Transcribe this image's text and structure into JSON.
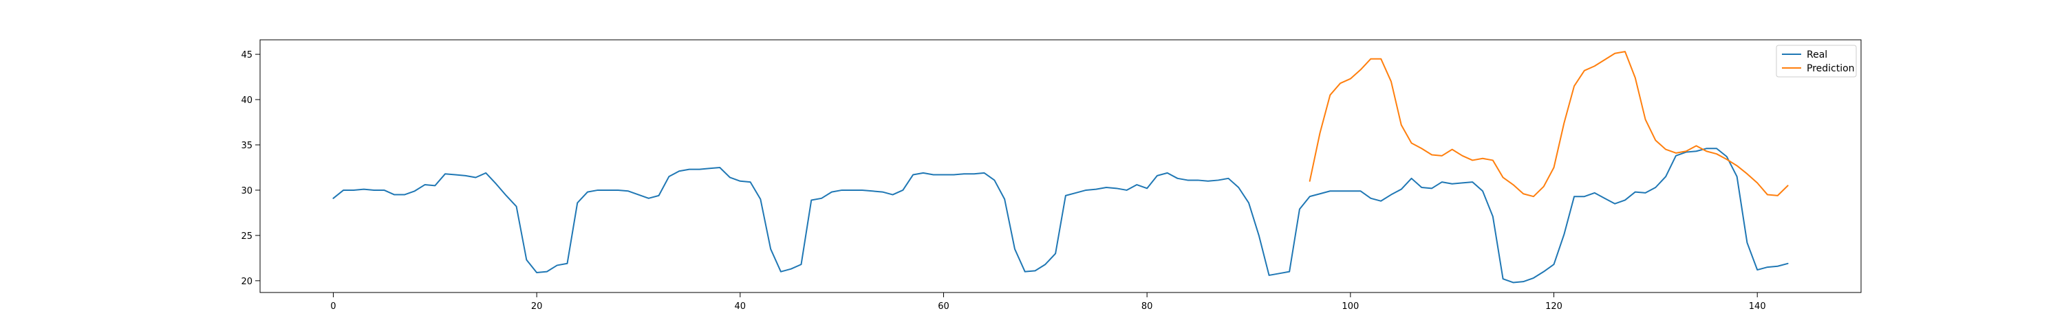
{
  "chart_data": {
    "type": "line",
    "title": "",
    "xlabel": "",
    "ylabel": "",
    "xlim": [
      -7.2,
      150.2
    ],
    "ylim": [
      18.7,
      46.6
    ],
    "x_ticks": [
      0,
      20,
      40,
      60,
      80,
      100,
      120,
      140
    ],
    "y_ticks": [
      20,
      25,
      30,
      35,
      40,
      45
    ],
    "grid": false,
    "legend_position": "top-right",
    "series": [
      {
        "name": "Real",
        "color": "#1f77b4",
        "x_start": 0,
        "values": [
          29.1,
          30.0,
          30.0,
          30.1,
          30.0,
          30.0,
          29.5,
          29.5,
          29.9,
          30.6,
          30.5,
          31.8,
          31.7,
          31.6,
          31.4,
          31.9,
          30.7,
          29.4,
          28.2,
          22.3,
          20.9,
          21.0,
          21.7,
          21.9,
          28.6,
          29.8,
          30.0,
          30.0,
          30.0,
          29.9,
          29.5,
          29.1,
          29.4,
          31.5,
          32.1,
          32.3,
          32.3,
          32.4,
          32.5,
          31.4,
          31.0,
          30.9,
          29.0,
          23.5,
          21.0,
          21.3,
          21.8,
          28.9,
          29.1,
          29.8,
          30.0,
          30.0,
          30.0,
          29.9,
          29.8,
          29.5,
          30.0,
          31.7,
          31.9,
          31.7,
          31.7,
          31.7,
          31.8,
          31.8,
          31.9,
          31.1,
          29.0,
          23.5,
          21.0,
          21.1,
          21.8,
          23.0,
          29.4,
          29.7,
          30.0,
          30.1,
          30.3,
          30.2,
          30.0,
          30.6,
          30.2,
          31.6,
          31.9,
          31.3,
          31.1,
          31.1,
          31.0,
          31.1,
          31.3,
          30.3,
          28.6,
          25.0,
          20.6,
          20.8,
          21.0,
          27.9,
          29.3,
          29.6,
          29.9,
          29.9,
          29.9,
          29.9,
          29.1,
          28.8,
          29.5,
          30.1,
          31.3,
          30.3,
          30.2,
          30.9,
          30.7,
          30.8,
          30.9,
          29.9,
          27.1,
          20.2,
          19.8,
          19.9,
          20.3,
          21.0,
          21.8,
          25.1,
          29.3,
          29.3,
          29.7,
          29.1,
          28.5,
          28.9,
          29.8,
          29.7,
          30.3,
          31.5,
          33.8,
          34.2,
          34.3,
          34.6,
          34.6,
          33.7,
          31.5,
          24.2,
          21.2,
          21.5,
          21.6,
          21.9
        ]
      },
      {
        "name": "Prediction",
        "color": "#ff7f0e",
        "x_start": 96,
        "values": [
          31.0,
          36.3,
          40.5,
          41.8,
          42.3,
          43.3,
          44.5,
          44.5,
          42.0,
          37.2,
          35.2,
          34.6,
          33.9,
          33.8,
          34.5,
          33.8,
          33.3,
          33.5,
          33.3,
          31.4,
          30.6,
          29.6,
          29.3,
          30.4,
          32.5,
          37.4,
          41.5,
          43.2,
          43.7,
          44.4,
          45.1,
          45.3,
          42.4,
          37.8,
          35.5,
          34.5,
          34.1,
          34.3,
          34.9,
          34.3,
          34.0,
          33.4,
          32.7,
          31.8,
          30.8,
          29.5,
          29.4,
          30.5
        ]
      }
    ]
  }
}
